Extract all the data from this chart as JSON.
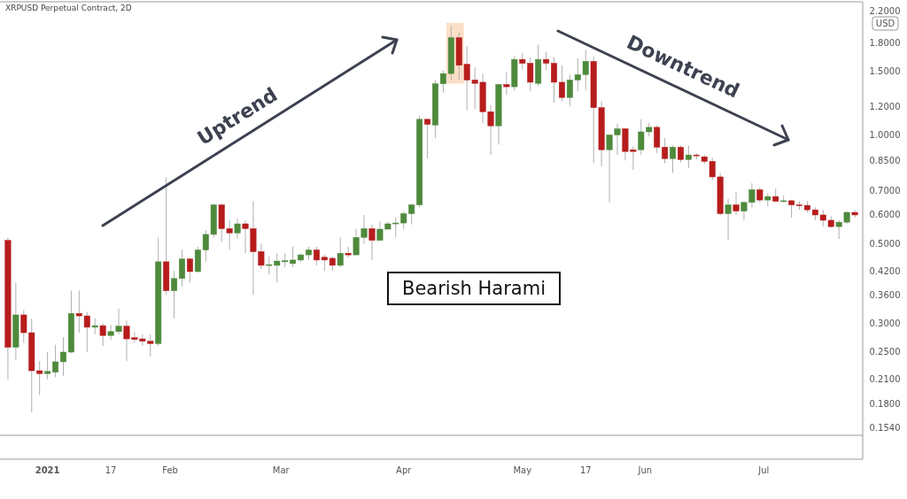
{
  "chart_data": {
    "type": "candlestick",
    "title": "XRPUSD Perpetual Contract, 2D",
    "ylabel": "USD",
    "log": true,
    "annotations": [
      "Uptrend",
      "Downtrend",
      "Bearish Harami"
    ],
    "x": [
      "2020-12-22",
      "2020-12-24",
      "2020-12-26",
      "2020-12-28",
      "2020-12-30",
      "2021-01-01",
      "2021-01-03",
      "2021-01-05",
      "2021-01-07",
      "2021-01-09",
      "2021-01-11",
      "2021-01-13",
      "2021-01-15",
      "2021-01-17",
      "2021-01-19",
      "2021-01-21",
      "2021-01-23",
      "2021-01-25",
      "2021-01-27",
      "2021-01-29",
      "2021-01-31",
      "2021-02-02",
      "2021-02-04",
      "2021-02-06",
      "2021-02-08",
      "2021-02-10",
      "2021-02-12",
      "2021-02-14",
      "2021-02-16",
      "2021-02-18",
      "2021-02-20",
      "2021-02-22",
      "2021-02-24",
      "2021-02-26",
      "2021-02-28",
      "2021-03-02",
      "2021-03-04",
      "2021-03-06",
      "2021-03-08",
      "2021-03-10",
      "2021-03-12",
      "2021-03-14",
      "2021-03-16",
      "2021-03-18",
      "2021-03-20",
      "2021-03-22",
      "2021-03-24",
      "2021-03-26",
      "2021-03-28",
      "2021-03-30",
      "2021-04-01",
      "2021-04-03",
      "2021-04-05",
      "2021-04-07",
      "2021-04-09",
      "2021-04-11",
      "2021-04-13",
      "2021-04-15",
      "2021-04-17",
      "2021-04-19",
      "2021-04-21",
      "2021-04-23",
      "2021-04-25",
      "2021-04-27",
      "2021-04-29",
      "2021-05-01",
      "2021-05-03",
      "2021-05-05",
      "2021-05-07",
      "2021-05-09",
      "2021-05-11",
      "2021-05-13",
      "2021-05-15",
      "2021-05-17",
      "2021-05-19",
      "2021-05-21",
      "2021-05-23",
      "2021-05-25",
      "2021-05-27",
      "2021-05-29",
      "2021-05-31",
      "2021-06-02",
      "2021-06-04",
      "2021-06-06",
      "2021-06-08",
      "2021-06-10",
      "2021-06-12",
      "2021-06-14",
      "2021-06-16",
      "2021-06-18",
      "2021-06-20",
      "2021-06-22",
      "2021-06-24",
      "2021-06-26",
      "2021-06-28",
      "2021-06-30",
      "2021-07-02",
      "2021-07-04",
      "2021-07-06",
      "2021-07-08",
      "2021-07-10",
      "2021-07-12",
      "2021-07-14",
      "2021-07-16",
      "2021-07-18",
      "2021-07-20",
      "2021-07-22",
      "2021-07-24"
    ],
    "ohlc": [
      [
        0.51,
        0.52,
        0.21,
        0.258
      ],
      [
        0.258,
        0.39,
        0.237,
        0.317
      ],
      [
        0.317,
        0.327,
        0.265,
        0.283
      ],
      [
        0.283,
        0.31,
        0.17,
        0.222
      ],
      [
        0.222,
        0.236,
        0.19,
        0.218
      ],
      [
        0.218,
        0.25,
        0.21,
        0.221
      ],
      [
        0.22,
        0.262,
        0.213,
        0.235
      ],
      [
        0.235,
        0.275,
        0.215,
        0.25
      ],
      [
        0.25,
        0.37,
        0.248,
        0.32
      ],
      [
        0.32,
        0.37,
        0.283,
        0.315
      ],
      [
        0.315,
        0.323,
        0.25,
        0.293
      ],
      [
        0.293,
        0.31,
        0.28,
        0.296
      ],
      [
        0.296,
        0.3,
        0.26,
        0.278
      ],
      [
        0.278,
        0.297,
        0.27,
        0.285
      ],
      [
        0.285,
        0.33,
        0.28,
        0.295
      ],
      [
        0.295,
        0.306,
        0.236,
        0.272
      ],
      [
        0.274,
        0.284,
        0.265,
        0.271
      ],
      [
        0.272,
        0.28,
        0.26,
        0.268
      ],
      [
        0.268,
        0.28,
        0.243,
        0.264
      ],
      [
        0.264,
        0.52,
        0.26,
        0.445
      ],
      [
        0.445,
        0.765,
        0.36,
        0.37
      ],
      [
        0.37,
        0.42,
        0.31,
        0.4
      ],
      [
        0.4,
        0.48,
        0.38,
        0.453
      ],
      [
        0.453,
        0.455,
        0.39,
        0.418
      ],
      [
        0.418,
        0.49,
        0.415,
        0.48
      ],
      [
        0.48,
        0.545,
        0.445,
        0.53
      ],
      [
        0.53,
        0.645,
        0.52,
        0.64
      ],
      [
        0.64,
        0.645,
        0.505,
        0.55
      ],
      [
        0.55,
        0.58,
        0.48,
        0.535
      ],
      [
        0.535,
        0.587,
        0.515,
        0.567
      ],
      [
        0.567,
        0.58,
        0.47,
        0.55
      ],
      [
        0.55,
        0.655,
        0.36,
        0.475
      ],
      [
        0.475,
        0.5,
        0.425,
        0.435
      ],
      [
        0.435,
        0.46,
        0.41,
        0.437
      ],
      [
        0.435,
        0.47,
        0.39,
        0.447
      ],
      [
        0.445,
        0.47,
        0.43,
        0.448
      ],
      [
        0.44,
        0.49,
        0.43,
        0.45
      ],
      [
        0.45,
        0.47,
        0.445,
        0.465
      ],
      [
        0.465,
        0.49,
        0.45,
        0.48
      ],
      [
        0.48,
        0.49,
        0.435,
        0.45
      ],
      [
        0.458,
        0.466,
        0.42,
        0.45
      ],
      [
        0.455,
        0.46,
        0.42,
        0.435
      ],
      [
        0.435,
        0.52,
        0.43,
        0.47
      ],
      [
        0.47,
        0.49,
        0.457,
        0.465
      ],
      [
        0.465,
        0.55,
        0.465,
        0.52
      ],
      [
        0.52,
        0.6,
        0.5,
        0.55
      ],
      [
        0.55,
        0.565,
        0.45,
        0.51
      ],
      [
        0.51,
        0.575,
        0.51,
        0.548
      ],
      [
        0.548,
        0.575,
        0.548,
        0.567
      ],
      [
        0.567,
        0.59,
        0.52,
        0.57
      ],
      [
        0.57,
        0.615,
        0.548,
        0.605
      ],
      [
        0.605,
        0.645,
        0.565,
        0.64
      ],
      [
        0.64,
        1.13,
        0.63,
        1.105
      ],
      [
        1.105,
        1.11,
        0.86,
        1.07
      ],
      [
        1.065,
        1.42,
        0.98,
        1.386
      ],
      [
        1.386,
        1.51,
        1.31,
        1.48
      ],
      [
        1.48,
        2.0,
        1.42,
        1.86
      ],
      [
        1.86,
        1.92,
        1.42,
        1.56
      ],
      [
        1.57,
        1.76,
        1.17,
        1.42
      ],
      [
        1.42,
        1.54,
        1.18,
        1.39
      ],
      [
        1.4,
        1.48,
        1.08,
        1.16
      ],
      [
        1.16,
        1.21,
        0.88,
        1.06
      ],
      [
        1.06,
        1.39,
        0.94,
        1.38
      ],
      [
        1.38,
        1.49,
        1.29,
        1.36
      ],
      [
        1.36,
        1.66,
        1.33,
        1.62
      ],
      [
        1.62,
        1.69,
        1.52,
        1.58
      ],
      [
        1.58,
        1.64,
        1.32,
        1.4
      ],
      [
        1.39,
        1.78,
        1.37,
        1.62
      ],
      [
        1.62,
        1.7,
        1.51,
        1.58
      ],
      [
        1.58,
        1.64,
        1.23,
        1.4
      ],
      [
        1.4,
        1.56,
        1.24,
        1.27
      ],
      [
        1.27,
        1.47,
        1.2,
        1.42
      ],
      [
        1.42,
        1.63,
        1.32,
        1.47
      ],
      [
        1.47,
        1.72,
        1.33,
        1.6
      ],
      [
        1.6,
        1.65,
        0.835,
        1.19
      ],
      [
        1.19,
        1.24,
        0.817,
        0.91
      ],
      [
        0.91,
        1.0,
        0.65,
        1.0
      ],
      [
        1.0,
        1.075,
        0.88,
        1.04
      ],
      [
        1.04,
        1.045,
        0.85,
        0.9
      ],
      [
        0.91,
        0.93,
        0.8,
        0.9
      ],
      [
        0.91,
        1.105,
        0.88,
        1.02
      ],
      [
        1.02,
        1.08,
        0.99,
        1.05
      ],
      [
        1.05,
        1.064,
        0.89,
        0.925
      ],
      [
        0.925,
        0.98,
        0.835,
        0.86
      ],
      [
        0.86,
        0.935,
        0.785,
        0.925
      ],
      [
        0.925,
        0.935,
        0.84,
        0.855
      ],
      [
        0.855,
        0.935,
        0.81,
        0.88
      ],
      [
        0.88,
        0.89,
        0.855,
        0.875
      ],
      [
        0.87,
        0.88,
        0.83,
        0.845
      ],
      [
        0.845,
        0.865,
        0.75,
        0.765
      ],
      [
        0.765,
        0.785,
        0.6,
        0.605
      ],
      [
        0.605,
        0.665,
        0.51,
        0.64
      ],
      [
        0.64,
        0.695,
        0.6,
        0.615
      ],
      [
        0.615,
        0.655,
        0.58,
        0.65
      ],
      [
        0.65,
        0.735,
        0.63,
        0.705
      ],
      [
        0.705,
        0.715,
        0.65,
        0.66
      ],
      [
        0.66,
        0.69,
        0.635,
        0.675
      ],
      [
        0.675,
        0.71,
        0.65,
        0.655
      ],
      [
        0.655,
        0.68,
        0.65,
        0.657
      ],
      [
        0.657,
        0.66,
        0.59,
        0.64
      ],
      [
        0.64,
        0.655,
        0.62,
        0.638
      ],
      [
        0.638,
        0.655,
        0.61,
        0.62
      ],
      [
        0.62,
        0.63,
        0.58,
        0.6
      ],
      [
        0.6,
        0.62,
        0.557,
        0.58
      ],
      [
        0.58,
        0.595,
        0.553,
        0.557
      ],
      [
        0.557,
        0.58,
        0.515,
        0.573
      ],
      [
        0.573,
        0.615,
        0.567,
        0.61
      ],
      [
        0.61,
        0.62,
        0.59,
        0.6
      ]
    ],
    "xlim": [
      "2020-12-20",
      "2021-07-26"
    ],
    "xticks": [
      {
        "value": "2021-01-01",
        "label": "2021"
      },
      {
        "value": "2021-01-17",
        "label": "17"
      },
      {
        "value": "2021-02-01",
        "label": "Feb"
      },
      {
        "value": "2021-03-01",
        "label": "Mar"
      },
      {
        "value": "2021-04-01",
        "label": "Apr"
      },
      {
        "value": "2021-05-01",
        "label": "May"
      },
      {
        "value": "2021-05-17",
        "label": "17"
      },
      {
        "value": "2021-06-01",
        "label": "Jun"
      },
      {
        "value": "2021-07-01",
        "label": "Jul"
      }
    ],
    "ylim": [
      0.147,
      2.34
    ],
    "yticks": [
      {
        "value": 0.154,
        "label": "0.1540"
      },
      {
        "value": 0.18,
        "label": "0.1800"
      },
      {
        "value": 0.21,
        "label": "0.2100"
      },
      {
        "value": 0.25,
        "label": "0.2500"
      },
      {
        "value": 0.3,
        "label": "0.3000"
      },
      {
        "value": 0.36,
        "label": "0.3600"
      },
      {
        "value": 0.42,
        "label": "0.4200"
      },
      {
        "value": 0.5,
        "label": "0.5000"
      },
      {
        "value": 0.6,
        "label": "0.6000"
      },
      {
        "value": 0.7,
        "label": "0.7000"
      },
      {
        "value": 0.85,
        "label": "0.8500"
      },
      {
        "value": 1,
        "label": "1.0000"
      },
      {
        "value": 1.2,
        "label": "1.2000"
      },
      {
        "value": 1.5,
        "label": "1.5000"
      },
      {
        "value": 1.8,
        "label": "1.8000"
      },
      {
        "value": 2.2,
        "label": "2.2000"
      }
    ]
  }
}
